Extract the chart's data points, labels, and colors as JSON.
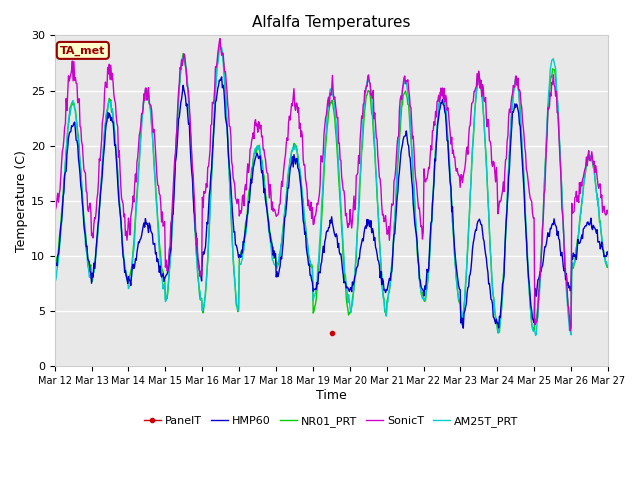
{
  "title": "Alfalfa Temperatures",
  "xlabel": "Time",
  "ylabel": "Temperature (C)",
  "ylim": [
    0,
    30
  ],
  "bg_color": "#e8e8e8",
  "annotation_text": "TA_met",
  "annotation_box_facecolor": "#ffffcc",
  "annotation_border_color": "#990000",
  "xtick_labels": [
    "Mar 12",
    "Mar 13",
    "Mar 14",
    "Mar 15",
    "Mar 16",
    "Mar 17",
    "Mar 18",
    "Mar 19",
    "Mar 20",
    "Mar 21",
    "Mar 22",
    "Mar 23",
    "Mar 24",
    "Mar 25",
    "Mar 26",
    "Mar 27"
  ],
  "legend_order": [
    "PanelT",
    "HMP60",
    "NR01_PRT",
    "SonicT",
    "AM25T_PRT"
  ],
  "colors": {
    "PanelT": "#cc0000",
    "HMP60": "#0000cc",
    "NR01_PRT": "#00cc00",
    "SonicT": "#cc00cc",
    "AM25T_PRT": "#00cccc"
  },
  "n_days": 15,
  "pts_per_day": 48,
  "nr01_min": [
    9,
    8,
    8,
    6,
    5,
    10,
    9,
    5,
    5,
    6,
    6,
    4,
    3,
    4,
    9
  ],
  "nr01_max": [
    24,
    24,
    25,
    28,
    29,
    20,
    20,
    24,
    25,
    25,
    25,
    26,
    26,
    27,
    19
  ],
  "am25_min": [
    8,
    8,
    7,
    6,
    5,
    9,
    9,
    6,
    5,
    6,
    6,
    4,
    3,
    3,
    9
  ],
  "am25_max": [
    24,
    24,
    25,
    28,
    29,
    20,
    20,
    25,
    26,
    26,
    25,
    26,
    26,
    28,
    19
  ],
  "hmp60_min": [
    9,
    8,
    8,
    8,
    10,
    10,
    8,
    7,
    7,
    7,
    7,
    4,
    4,
    7,
    10
  ],
  "hmp60_max": [
    22,
    23,
    13,
    25,
    26,
    19,
    19,
    13,
    13,
    21,
    24,
    13,
    24,
    13,
    13
  ],
  "sonic_min": [
    14,
    12,
    13,
    8,
    15,
    14,
    14,
    13,
    13,
    12,
    17,
    17,
    14,
    4,
    14
  ],
  "sonic_max": [
    27,
    27,
    25,
    28,
    29,
    22,
    24,
    25,
    26,
    26,
    25,
    26,
    26,
    26,
    19
  ],
  "panel_point_day": 7.5,
  "panel_point_val": 3.0,
  "grid_color": "#ffffff",
  "lw": 1.0
}
